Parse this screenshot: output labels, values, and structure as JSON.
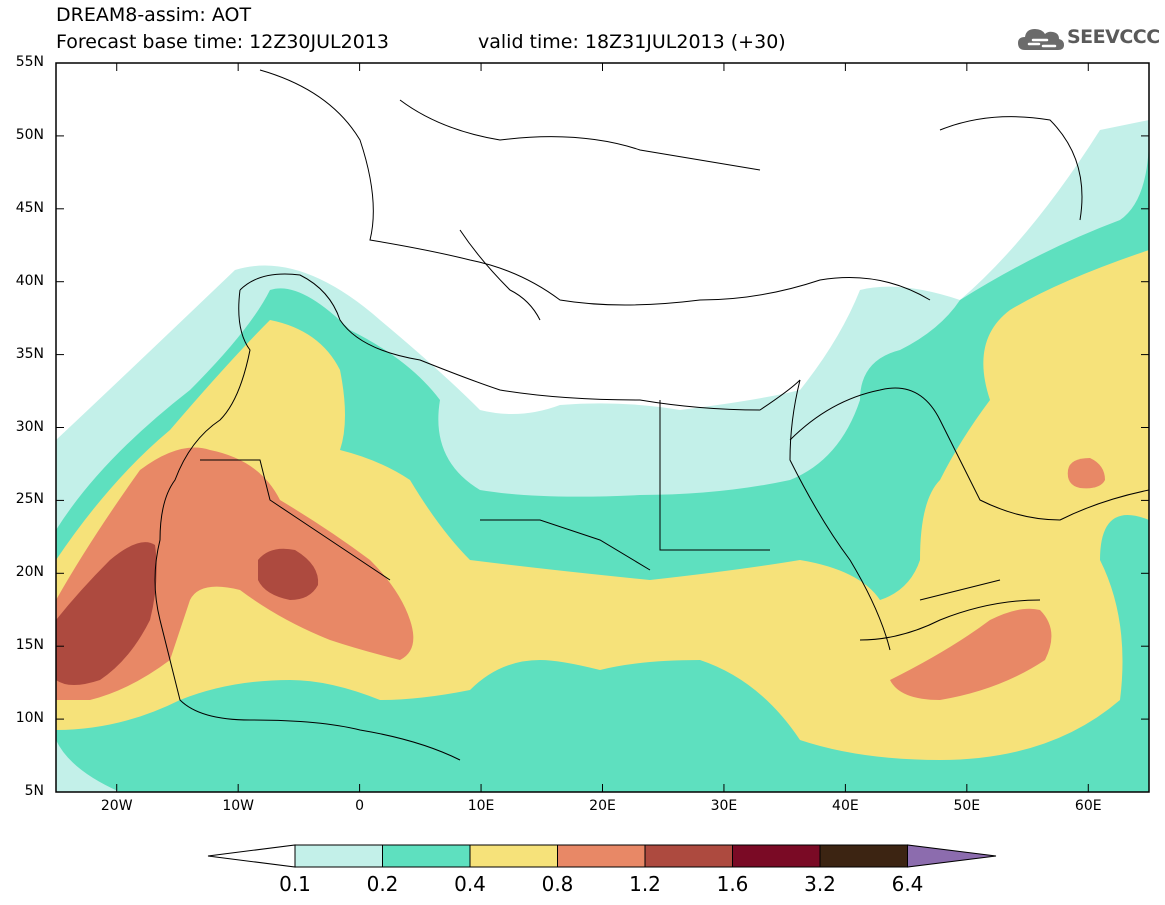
{
  "header": {
    "line1": "DREAM8-assim: AOT",
    "line2_left": "Forecast base time: 12Z30JUL2013",
    "line2_right": "valid time: 18Z31JUL2013 (+30)"
  },
  "logo": {
    "icon": "cloud-logo-icon",
    "text": "SEEVCCC"
  },
  "axes": {
    "lat_labels": [
      "55N",
      "50N",
      "45N",
      "40N",
      "35N",
      "30N",
      "25N",
      "20N",
      "15N",
      "10N",
      "5N"
    ],
    "lon_labels": [
      "20W",
      "10W",
      "0",
      "10E",
      "20E",
      "30E",
      "40E",
      "50E",
      "60E"
    ],
    "lon_range": [
      -25,
      65
    ],
    "lat_range": [
      5,
      55
    ]
  },
  "colorbar": {
    "labels": [
      "0.1",
      "0.2",
      "0.4",
      "0.8",
      "1.2",
      "1.6",
      "3.2",
      "6.4"
    ],
    "colors": [
      "#ffffff",
      "#c3f0e9",
      "#5ee0bf",
      "#f6e27a",
      "#e88866",
      "#ad4a3f",
      "#7a0a25",
      "#3c2412",
      "#8c6cae"
    ]
  }
}
